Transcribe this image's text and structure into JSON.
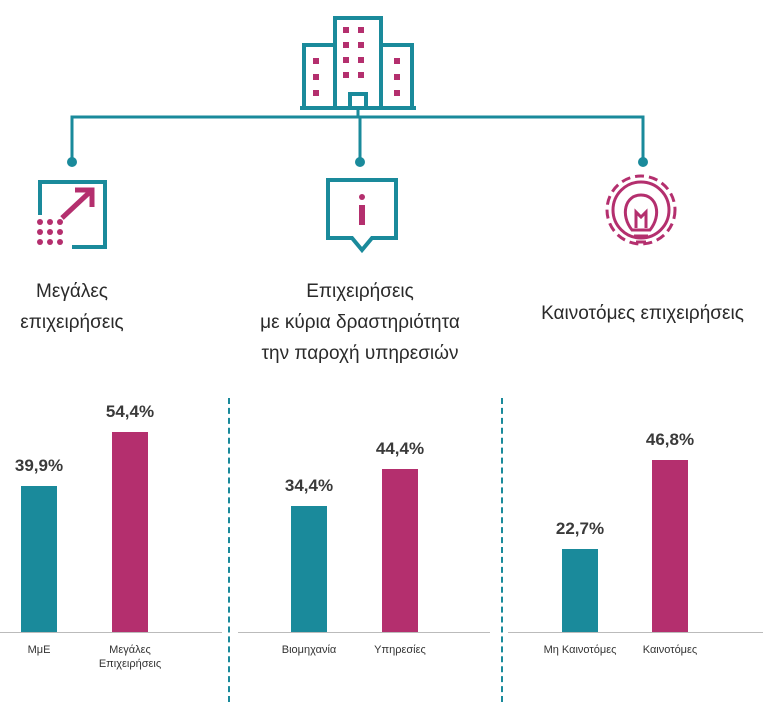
{
  "chart_data": [
    {
      "type": "bar",
      "title": "Μεγάλες\nεπιχειρήσεις",
      "categories": [
        "ΜμΕ",
        "Μεγάλες\nΕπιχειρήσεις"
      ],
      "values": [
        39.9,
        54.4
      ],
      "value_labels": [
        "39,9%",
        "54,4%"
      ],
      "colors": [
        "#1a8a9b",
        "#b42f6e"
      ]
    },
    {
      "type": "bar",
      "title": "Επιχειρήσεις\nμε κύρια δραστηριότητα\nτην παροχή υπηρεσιών",
      "categories": [
        "Βιομηχανία",
        "Υπηρεσίες"
      ],
      "values": [
        34.4,
        44.4
      ],
      "value_labels": [
        "34,4%",
        "44,4%"
      ],
      "colors": [
        "#1a8a9b",
        "#b42f6e"
      ]
    },
    {
      "type": "bar",
      "title": "Καινοτόμες επιχειρήσεις",
      "categories": [
        "Μη Καινοτόμες",
        "Καινοτόμες"
      ],
      "values": [
        22.7,
        46.8
      ],
      "value_labels": [
        "22,7%",
        "46,8%"
      ],
      "colors": [
        "#1a8a9b",
        "#b42f6e"
      ]
    }
  ]
}
